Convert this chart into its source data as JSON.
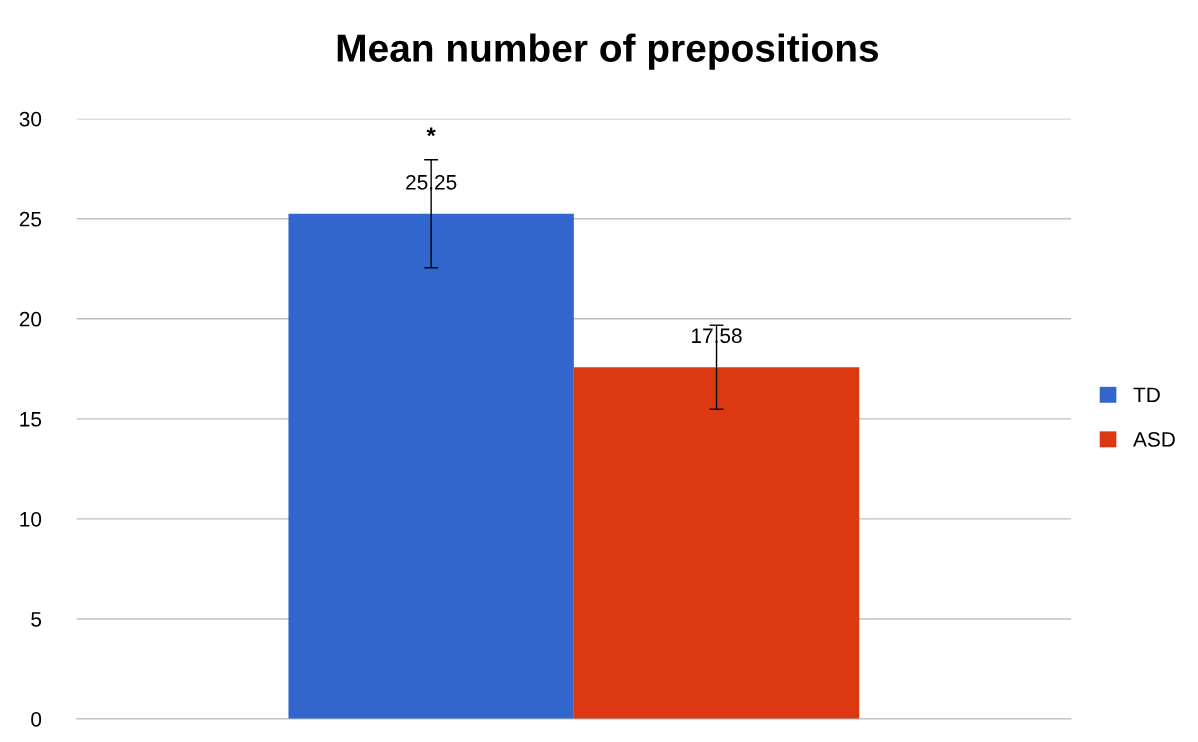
{
  "chart_data": {
    "type": "bar",
    "title": "Mean number of prepositions",
    "categories": [
      null
    ],
    "series": [
      {
        "name": "TD",
        "color": "#3366cc",
        "values": [
          25.25
        ],
        "errors": [
          2.7
        ]
      },
      {
        "name": "ASD",
        "color": "#dc3912",
        "values": [
          17.58
        ],
        "errors": [
          2.1
        ]
      }
    ],
    "ylim": [
      0,
      30
    ],
    "yticks": [
      0,
      5,
      10,
      15,
      20,
      25,
      30
    ],
    "grid": "y",
    "legend": "right",
    "data_labels": true,
    "annotations": [
      "*"
    ]
  }
}
